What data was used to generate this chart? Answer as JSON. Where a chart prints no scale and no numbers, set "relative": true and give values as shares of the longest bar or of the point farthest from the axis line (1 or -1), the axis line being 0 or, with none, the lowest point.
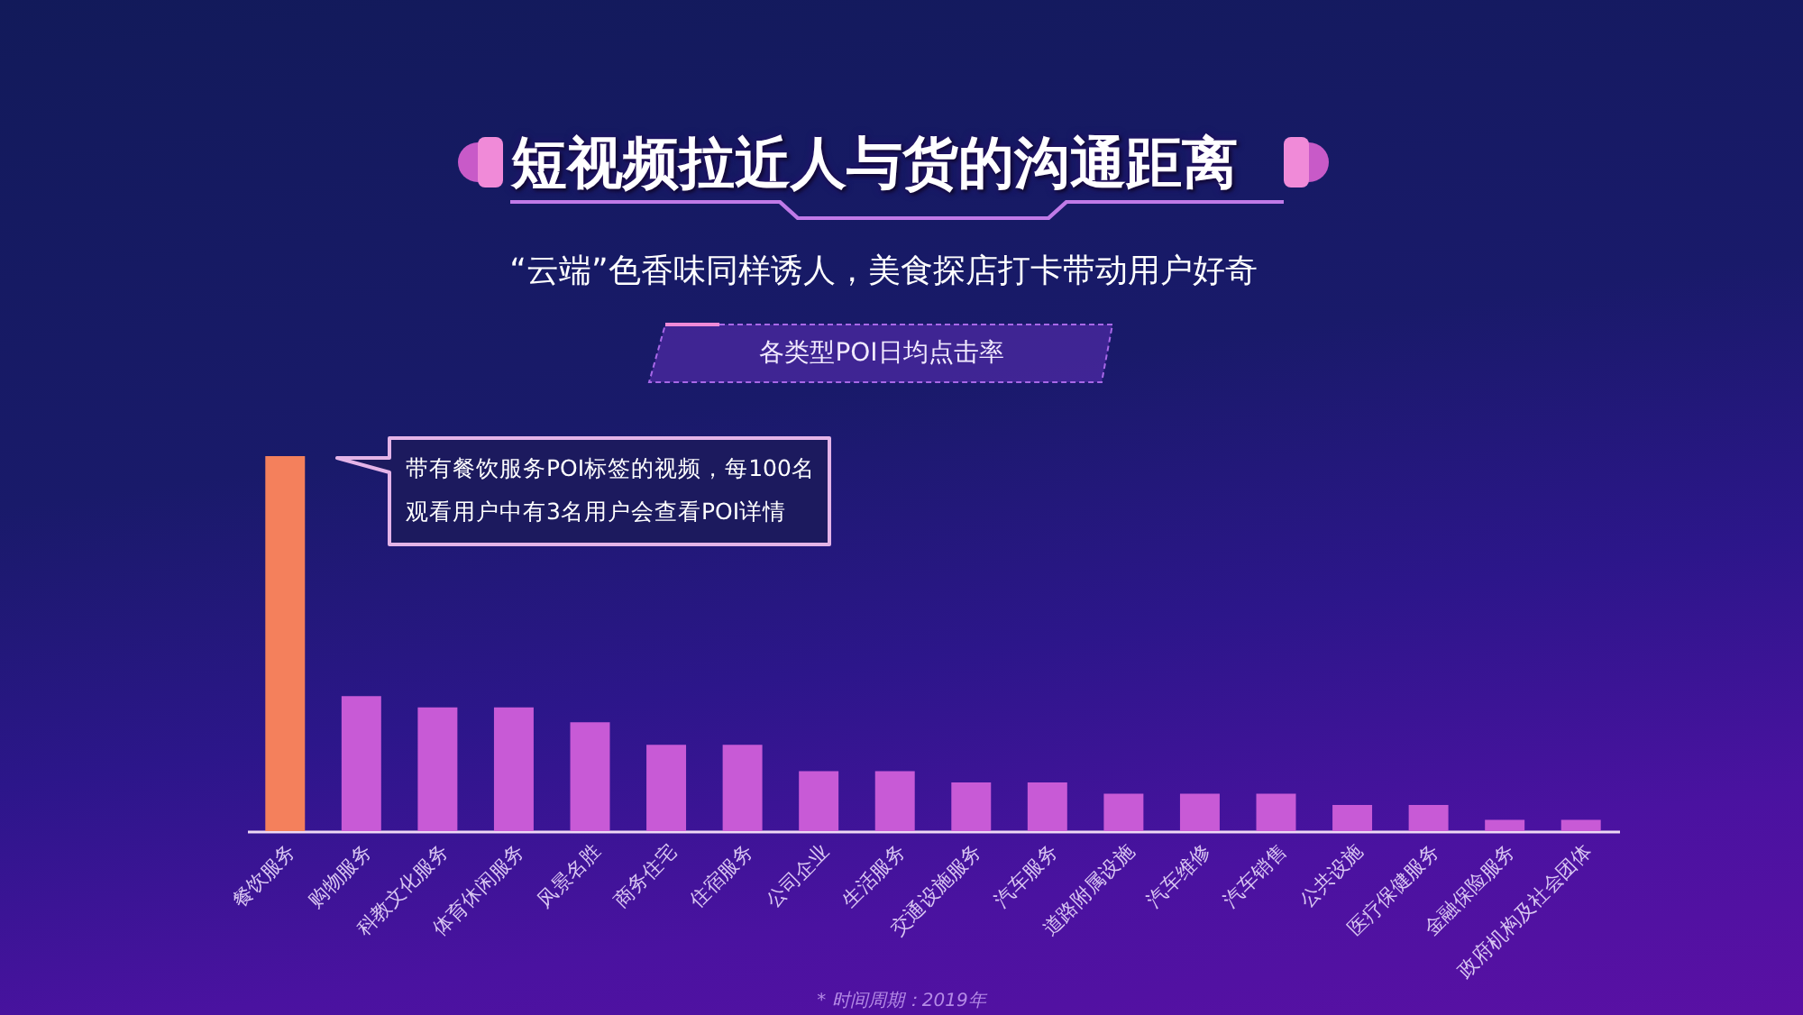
{
  "chart_data": {
    "type": "bar",
    "title": "短视频拉近人与货的沟通距离",
    "subtitle": "“云端”色香味同样诱人，美食探店打卡带动用户好奇",
    "categories": [
      "餐饮服务",
      "购物服务",
      "科教文化服务",
      "体育休闲服务",
      "风景名胜",
      "商务住宅",
      "住宿服务",
      "公司企业",
      "生活服务",
      "交通设施服务",
      "汽车服务",
      "道路附属设施",
      "汽车维修",
      "汽车销售",
      "公共设施",
      "医疗保健服务",
      "金融保险服务",
      "政府机构及社会团体"
    ],
    "values": [
      1,
      0.36,
      0.33,
      0.33,
      0.29,
      0.23,
      0.23,
      0.16,
      0.16,
      0.13,
      0.13,
      0.1,
      0.1,
      0.1,
      0.07,
      0.07,
      0.03,
      0.03
    ],
    "colors": [
      "#f4805c",
      "#c85ad6",
      "#c85ad6",
      "#c85ad6",
      "#c85ad6",
      "#c85ad6",
      "#c85ad6",
      "#c85ad6",
      "#c85ad6",
      "#c85ad6",
      "#c85ad6",
      "#c85ad6",
      "#c85ad6",
      "#c85ad6",
      "#c85ad6",
      "#c85ad6",
      "#c85ad6",
      "#c85ad6"
    ],
    "relative": true,
    "annotations": [
      "各类型POI日均点击率",
      "带有餐饮服务POI标签的视频，每100名观看用户中有3名用户会查看POI详情",
      "* 时间周期：2019年"
    ]
  }
}
